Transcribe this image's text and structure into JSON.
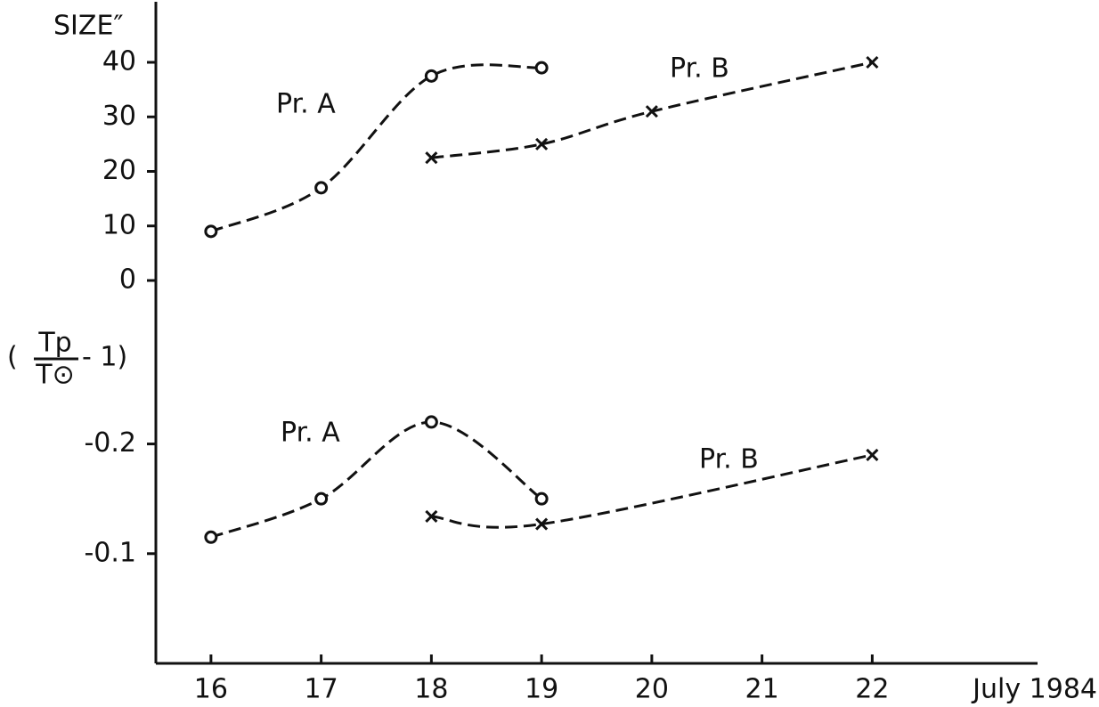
{
  "chart_data": [
    {
      "type": "line",
      "ylabel": "SIZE″",
      "xlim": [
        15.5,
        23.5
      ],
      "ylim": [
        0,
        40
      ],
      "yticks": [
        0,
        10,
        20,
        30,
        40
      ],
      "series": [
        {
          "name": "Pr. A",
          "color": "#111111",
          "marker": "circle",
          "linestyle": "dashed",
          "x": [
            16,
            17,
            18,
            19
          ],
          "values": [
            9,
            17,
            37.5,
            39
          ]
        },
        {
          "name": "Pr. B",
          "color": "#111111",
          "marker": "cross",
          "linestyle": "dashed",
          "x": [
            18,
            19,
            20,
            22
          ],
          "values": [
            22.5,
            25,
            31,
            40
          ]
        }
      ]
    },
    {
      "type": "line",
      "ylabel": {
        "prefix": "(",
        "numerator": "Tp",
        "denominator": "T⊙",
        "suffix": "- 1)"
      },
      "xlabel": "July 1984",
      "xlim": [
        15.5,
        23.5
      ],
      "xticks": [
        16,
        17,
        18,
        19,
        20,
        21,
        22
      ],
      "ylim": [
        0,
        -0.28
      ],
      "yticks": [
        -0.2,
        -0.1
      ],
      "series": [
        {
          "name": "Pr. A",
          "color": "#111111",
          "marker": "circle",
          "linestyle": "dashed",
          "x": [
            16,
            17,
            18,
            19
          ],
          "values": [
            -0.115,
            -0.15,
            -0.22,
            -0.15
          ]
        },
        {
          "name": "Pr. B",
          "color": "#111111",
          "marker": "cross",
          "linestyle": "dashed",
          "x": [
            18,
            19,
            22
          ],
          "values": [
            -0.134,
            -0.127,
            -0.19
          ]
        }
      ]
    }
  ]
}
